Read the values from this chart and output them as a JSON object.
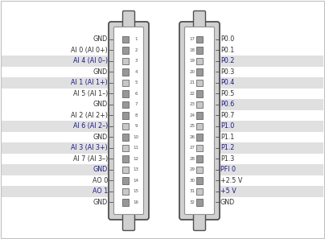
{
  "bg_color": "#ffffff",
  "white": "#ffffff",
  "dark_gray": "#505050",
  "medium_gray": "#909090",
  "light_gray": "#d8d8d8",
  "connector_fill": "#d0d0d0",
  "pin_fill": "#b8b8b8",
  "text_color_blue": "#1a1a8c",
  "text_color_plain": "#303030",
  "label_band_color": "#e0e0e0",
  "left_labels": [
    [
      "GND",
      false
    ],
    [
      "AI 0 (AI 0+)",
      false
    ],
    [
      "AI 4 (AI 0–)",
      true
    ],
    [
      "GND",
      false
    ],
    [
      "AI 1 (AI 1+)",
      true
    ],
    [
      "AI 5 (AI 1–)",
      false
    ],
    [
      "GND",
      false
    ],
    [
      "AI 2 (AI 2+)",
      false
    ],
    [
      "AI 6 (AI 2–)",
      true
    ],
    [
      "GND",
      false
    ],
    [
      "AI 3 (AI 3+)",
      true
    ],
    [
      "AI 7 (AI 3–)",
      false
    ],
    [
      "GND",
      true
    ],
    [
      "AO 0",
      false
    ],
    [
      "AO 1",
      true
    ],
    [
      "GND",
      false
    ]
  ],
  "right_labels": [
    [
      "P0.0",
      false
    ],
    [
      "P0.1",
      false
    ],
    [
      "P0.2",
      true
    ],
    [
      "P0.3",
      false
    ],
    [
      "P0.4",
      true
    ],
    [
      "P0.5",
      false
    ],
    [
      "P0.6",
      true
    ],
    [
      "P0.7",
      false
    ],
    [
      "P1.0",
      true
    ],
    [
      "P1.1",
      false
    ],
    [
      "P1.2",
      true
    ],
    [
      "P1.3",
      false
    ],
    [
      "PFI 0",
      true
    ],
    [
      "+2.5 V",
      false
    ],
    [
      "+5 V",
      true
    ],
    [
      "GND",
      false
    ]
  ],
  "left_pin_numbers": [
    "1",
    "2",
    "3",
    "4",
    "5",
    "6",
    "7",
    "8",
    "9",
    "10",
    "11",
    "12",
    "13",
    "14",
    "15",
    "16"
  ],
  "right_pin_numbers": [
    "17",
    "18",
    "19",
    "20",
    "21",
    "22",
    "23",
    "24",
    "25",
    "26",
    "27",
    "28",
    "29",
    "30",
    "31",
    "32"
  ],
  "fig_w": 4.04,
  "fig_h": 2.97,
  "dpi": 100
}
